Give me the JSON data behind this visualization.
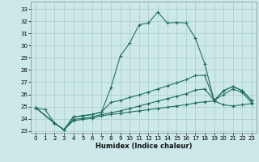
{
  "xlabel": "Humidex (Indice chaleur)",
  "background_color": "#cce8e8",
  "grid_color": "#aacccc",
  "line_color": "#1a6b5a",
  "xlim": [
    -0.5,
    23.5
  ],
  "ylim": [
    22.85,
    33.6
  ],
  "yticks": [
    23,
    24,
    25,
    26,
    27,
    28,
    29,
    30,
    31,
    32,
    33
  ],
  "xticks": [
    0,
    1,
    2,
    3,
    4,
    5,
    6,
    7,
    8,
    9,
    10,
    11,
    12,
    13,
    14,
    15,
    16,
    17,
    18,
    19,
    20,
    21,
    22,
    23
  ],
  "line1_x": [
    0,
    1,
    2,
    3,
    4,
    5,
    6,
    7,
    8,
    9,
    10,
    11,
    12,
    13,
    14,
    15,
    16,
    17,
    18,
    19,
    20,
    21,
    22,
    23
  ],
  "line1_y": [
    24.9,
    24.75,
    23.65,
    23.1,
    24.15,
    24.25,
    24.35,
    24.55,
    26.55,
    29.15,
    30.2,
    31.7,
    31.85,
    32.75,
    31.85,
    31.9,
    31.85,
    30.6,
    28.5,
    25.5,
    26.3,
    26.65,
    26.3,
    25.5
  ],
  "line2_x": [
    0,
    2,
    3,
    4,
    5,
    6,
    7,
    8,
    9,
    10,
    11,
    12,
    13,
    14,
    15,
    16,
    17,
    18,
    19,
    20,
    21,
    22,
    23
  ],
  "line2_y": [
    24.9,
    23.65,
    23.1,
    24.15,
    24.25,
    24.35,
    24.55,
    25.35,
    25.5,
    25.75,
    25.95,
    26.2,
    26.45,
    26.7,
    26.95,
    27.2,
    27.55,
    27.55,
    25.5,
    26.3,
    26.65,
    26.3,
    25.5
  ],
  "line3_x": [
    0,
    2,
    3,
    4,
    5,
    6,
    7,
    8,
    9,
    10,
    11,
    12,
    13,
    14,
    15,
    16,
    17,
    18,
    19,
    20,
    21,
    22,
    23
  ],
  "line3_y": [
    24.9,
    23.65,
    23.1,
    23.95,
    24.05,
    24.15,
    24.35,
    24.5,
    24.65,
    24.85,
    25.05,
    25.25,
    25.45,
    25.65,
    25.85,
    26.05,
    26.35,
    26.45,
    25.5,
    26.0,
    26.45,
    26.15,
    25.3
  ],
  "line4_x": [
    0,
    2,
    3,
    4,
    5,
    6,
    7,
    8,
    9,
    10,
    11,
    12,
    13,
    14,
    15,
    16,
    17,
    18,
    19,
    20,
    21,
    22,
    23
  ],
  "line4_y": [
    24.9,
    23.65,
    23.1,
    23.85,
    23.95,
    24.05,
    24.25,
    24.35,
    24.45,
    24.55,
    24.65,
    24.75,
    24.85,
    24.95,
    25.05,
    25.15,
    25.3,
    25.4,
    25.45,
    25.15,
    25.05,
    25.15,
    25.25
  ]
}
